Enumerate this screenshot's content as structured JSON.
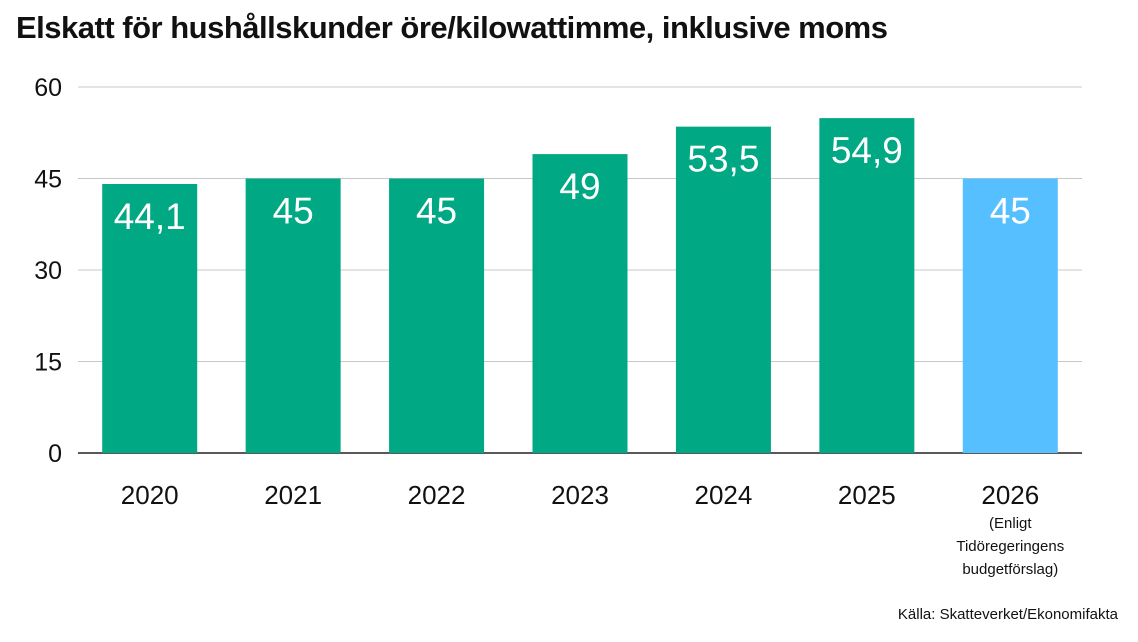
{
  "chart_data": {
    "type": "bar",
    "title": "Elskatt för hushållskunder öre/kilowattimme, inklusive moms",
    "categories": [
      "2020",
      "2021",
      "2022",
      "2023",
      "2024",
      "2025",
      "2026"
    ],
    "category_notes": [
      "",
      "",
      "",
      "",
      "",
      "",
      "(Enligt\nTidöregeringens\nbudgetförslag)"
    ],
    "values": [
      44.1,
      45,
      45,
      49,
      53.5,
      54.9,
      45
    ],
    "value_labels": [
      "44,1",
      "45",
      "45",
      "49",
      "53,5",
      "54,9",
      "45"
    ],
    "ylim": [
      0,
      60
    ],
    "yticks": [
      0,
      15,
      30,
      45,
      60
    ],
    "xlabel": "",
    "ylabel": "",
    "grid": true,
    "colors": {
      "bar": "#00A884",
      "highlight_bar": "#55BFFF",
      "grid": "#C8C8C8",
      "label": "#FFFFFF"
    },
    "highlight_index": 6,
    "source": "Källa: Skatteverket/Ekonomifakta"
  }
}
